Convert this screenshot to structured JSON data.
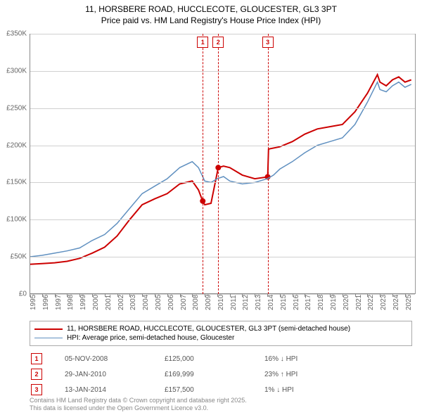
{
  "title_line1": "11, HORSBERE ROAD, HUCCLECOTE, GLOUCESTER, GL3 3PT",
  "title_line2": "Price paid vs. HM Land Registry's House Price Index (HPI)",
  "chart": {
    "type": "line",
    "background_color": "#ffffff",
    "grid_color": "#d0d0d0",
    "axis_color": "#888888",
    "ylim": [
      0,
      350000
    ],
    "ytick_step": 50000,
    "ytick_labels": [
      "£0",
      "£50K",
      "£100K",
      "£150K",
      "£200K",
      "£250K",
      "£300K",
      "£350K"
    ],
    "xlim": [
      1995,
      2025.8
    ],
    "xtick_labels": [
      "1995",
      "1996",
      "1997",
      "1998",
      "1999",
      "2000",
      "2001",
      "2002",
      "2003",
      "2004",
      "2005",
      "2006",
      "2007",
      "2008",
      "2009",
      "2010",
      "2011",
      "2012",
      "2013",
      "2014",
      "2015",
      "2016",
      "2017",
      "2018",
      "2019",
      "2020",
      "2021",
      "2022",
      "2023",
      "2024",
      "2025"
    ],
    "series": [
      {
        "name": "price_paid",
        "color": "#cc0000",
        "width": 2,
        "points": [
          [
            1995,
            40000
          ],
          [
            1996,
            41000
          ],
          [
            1997,
            42000
          ],
          [
            1998,
            44000
          ],
          [
            1999,
            48000
          ],
          [
            2000,
            55000
          ],
          [
            2001,
            63000
          ],
          [
            2002,
            78000
          ],
          [
            2003,
            100000
          ],
          [
            2004,
            120000
          ],
          [
            2005,
            128000
          ],
          [
            2006,
            135000
          ],
          [
            2007,
            148000
          ],
          [
            2008,
            152000
          ],
          [
            2008.5,
            140000
          ],
          [
            2008.84,
            125000
          ],
          [
            2009,
            120000
          ],
          [
            2009.5,
            122000
          ],
          [
            2010.08,
            169999
          ],
          [
            2010.5,
            172000
          ],
          [
            2011,
            170000
          ],
          [
            2012,
            160000
          ],
          [
            2013,
            155000
          ],
          [
            2014.03,
            157500
          ],
          [
            2014.1,
            195000
          ],
          [
            2015,
            198000
          ],
          [
            2016,
            205000
          ],
          [
            2017,
            215000
          ],
          [
            2018,
            222000
          ],
          [
            2019,
            225000
          ],
          [
            2020,
            228000
          ],
          [
            2021,
            245000
          ],
          [
            2022,
            270000
          ],
          [
            2022.8,
            295000
          ],
          [
            2023,
            285000
          ],
          [
            2023.5,
            280000
          ],
          [
            2024,
            288000
          ],
          [
            2024.5,
            292000
          ],
          [
            2025,
            285000
          ],
          [
            2025.5,
            288000
          ]
        ],
        "markers": [
          {
            "x": 2008.84,
            "y": 125000
          },
          {
            "x": 2010.08,
            "y": 169999
          },
          {
            "x": 2014.03,
            "y": 157500
          }
        ]
      },
      {
        "name": "hpi",
        "color": "#6090c0",
        "width": 1.5,
        "points": [
          [
            1995,
            50000
          ],
          [
            1996,
            52000
          ],
          [
            1997,
            55000
          ],
          [
            1998,
            58000
          ],
          [
            1999,
            62000
          ],
          [
            2000,
            72000
          ],
          [
            2001,
            80000
          ],
          [
            2002,
            95000
          ],
          [
            2003,
            115000
          ],
          [
            2004,
            135000
          ],
          [
            2005,
            145000
          ],
          [
            2006,
            155000
          ],
          [
            2007,
            170000
          ],
          [
            2008,
            178000
          ],
          [
            2008.5,
            170000
          ],
          [
            2009,
            152000
          ],
          [
            2009.5,
            150000
          ],
          [
            2010,
            155000
          ],
          [
            2010.5,
            158000
          ],
          [
            2011,
            152000
          ],
          [
            2012,
            148000
          ],
          [
            2013,
            150000
          ],
          [
            2014,
            155000
          ],
          [
            2014.5,
            160000
          ],
          [
            2015,
            168000
          ],
          [
            2016,
            178000
          ],
          [
            2017,
            190000
          ],
          [
            2018,
            200000
          ],
          [
            2019,
            205000
          ],
          [
            2020,
            210000
          ],
          [
            2021,
            228000
          ],
          [
            2022,
            258000
          ],
          [
            2022.8,
            285000
          ],
          [
            2023,
            275000
          ],
          [
            2023.5,
            272000
          ],
          [
            2024,
            280000
          ],
          [
            2024.5,
            285000
          ],
          [
            2025,
            278000
          ],
          [
            2025.5,
            282000
          ]
        ]
      }
    ],
    "vertical_markers": [
      {
        "x": 2008.84,
        "badge": "1",
        "color": "#cc0000"
      },
      {
        "x": 2010.08,
        "badge": "2",
        "color": "#cc0000"
      },
      {
        "x": 2014.03,
        "badge": "3",
        "color": "#cc0000"
      }
    ]
  },
  "legend": {
    "items": [
      {
        "color": "#cc0000",
        "width": 2,
        "label": "11, HORSBERE ROAD, HUCCLECOTE, GLOUCESTER, GL3 3PT (semi-detached house)"
      },
      {
        "color": "#6090c0",
        "width": 1,
        "label": "HPI: Average price, semi-detached house, Gloucester"
      }
    ]
  },
  "events": [
    {
      "badge": "1",
      "color": "#cc0000",
      "date": "05-NOV-2008",
      "price": "£125,000",
      "delta": "16% ↓ HPI"
    },
    {
      "badge": "2",
      "color": "#cc0000",
      "date": "29-JAN-2010",
      "price": "£169,999",
      "delta": "23% ↑ HPI"
    },
    {
      "badge": "3",
      "color": "#cc0000",
      "date": "13-JAN-2014",
      "price": "£157,500",
      "delta": "1% ↓ HPI"
    }
  ],
  "footer_line1": "Contains HM Land Registry data © Crown copyright and database right 2025.",
  "footer_line2": "This data is licensed under the Open Government Licence v3.0."
}
